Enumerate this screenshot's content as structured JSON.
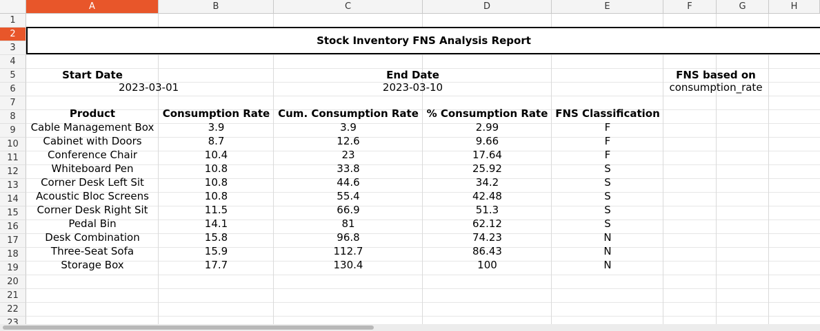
{
  "columns": [
    "A",
    "B",
    "C",
    "D",
    "E",
    "F",
    "G",
    "H"
  ],
  "rows": [
    "1",
    "2",
    "3",
    "4",
    "5",
    "6",
    "7",
    "8",
    "9",
    "10",
    "11",
    "12",
    "13",
    "14",
    "15",
    "16",
    "17",
    "18",
    "19",
    "20",
    "21",
    "22",
    "23"
  ],
  "title": "Stock Inventory FNS Analysis Report",
  "start_date": {
    "label": "Start Date",
    "value": "2023-03-01"
  },
  "end_date": {
    "label": "End Date",
    "value": "2023-03-10"
  },
  "fns_basis": {
    "label": "FNS based on",
    "value": "consumption_rate"
  },
  "table": {
    "headers": [
      "Product",
      "Consumption Rate",
      "Cum. Consumption Rate",
      "% Consumption Rate",
      "FNS Classification"
    ],
    "rows": [
      [
        "Cable Management Box",
        "3.9",
        "3.9",
        "2.99",
        "F"
      ],
      [
        "Cabinet with Doors",
        "8.7",
        "12.6",
        "9.66",
        "F"
      ],
      [
        "Conference Chair",
        "10.4",
        "23",
        "17.64",
        "F"
      ],
      [
        "Whiteboard Pen",
        "10.8",
        "33.8",
        "25.92",
        "S"
      ],
      [
        "Corner Desk Left Sit",
        "10.8",
        "44.6",
        "34.2",
        "S"
      ],
      [
        "Acoustic Bloc Screens",
        "10.8",
        "55.4",
        "42.48",
        "S"
      ],
      [
        "Corner Desk Right Sit",
        "11.5",
        "66.9",
        "51.3",
        "S"
      ],
      [
        "Pedal Bin",
        "14.1",
        "81",
        "62.12",
        "S"
      ],
      [
        "Desk Combination",
        "15.8",
        "96.8",
        "74.23",
        "N"
      ],
      [
        "Three-Seat Sofa",
        "15.9",
        "112.7",
        "86.43",
        "N"
      ],
      [
        "Storage Box",
        "17.7",
        "130.4",
        "100",
        "N"
      ]
    ]
  }
}
